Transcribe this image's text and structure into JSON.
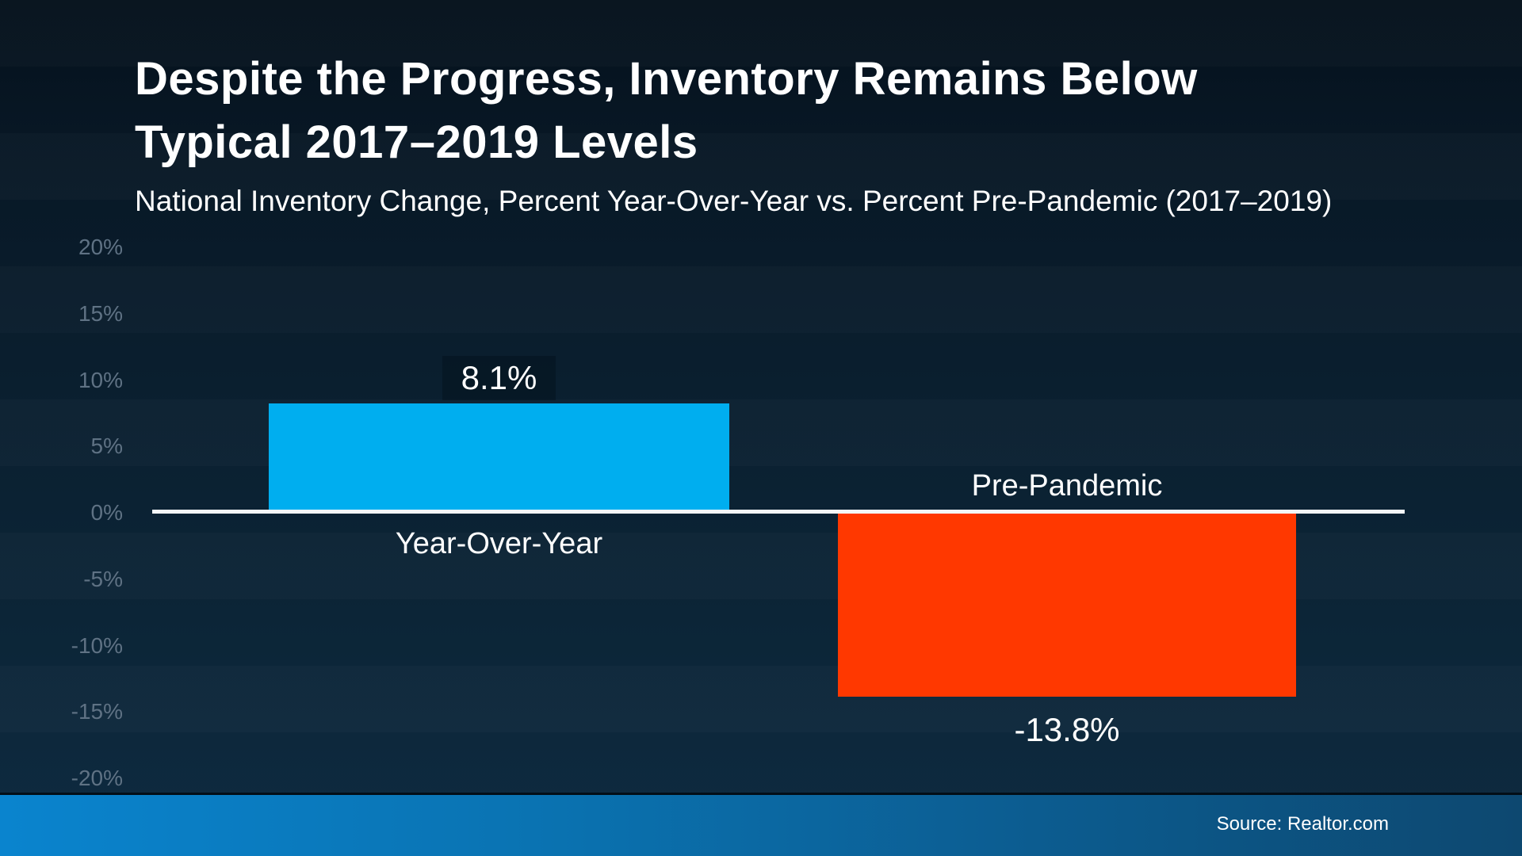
{
  "header": {
    "title": "Despite the Progress, Inventory Remains Below\nTypical 2017–2019 Levels",
    "subtitle": "National Inventory Change, Percent Year-Over-Year vs. Percent Pre-Pandemic (2017–2019)"
  },
  "footer": {
    "source": "Source: Realtor.com"
  },
  "colors": {
    "background_top": "#05111C",
    "background_bottom": "#0E2B41",
    "bar_positive": "#00AEEF",
    "bar_negative": "#FF3800",
    "axis_tick_text": "#5F7284",
    "zero_line": "#F4F7F9",
    "footer_gradient_left": "#0A84CE",
    "footer_gradient_right": "#0D4870",
    "text": "#FFFFFF"
  },
  "chart_data": {
    "type": "bar",
    "title": "Despite the Progress, Inventory Remains Below Typical 2017–2019 Levels",
    "subtitle": "National Inventory Change, Percent Year-Over-Year vs. Percent Pre-Pandemic (2017–2019)",
    "categories": [
      "Year-Over-Year",
      "Pre-Pandemic"
    ],
    "values": [
      8.1,
      -13.8
    ],
    "value_labels": [
      "8.1%",
      "-13.8%"
    ],
    "bar_colors": [
      "#00AEEF",
      "#FF3800"
    ],
    "xlabel": "",
    "ylabel": "",
    "ylim": [
      -20,
      20
    ],
    "ytick_step": 5,
    "yticks": [
      20,
      15,
      10,
      5,
      0,
      -5,
      -10,
      -15,
      -20
    ],
    "ytick_labels": [
      "20%",
      "15%",
      "10%",
      "5%",
      "0%",
      "-5%",
      "-10%",
      "-15%",
      "-20%"
    ],
    "grid": false,
    "legend_position": "none",
    "source": "Source: Realtor.com"
  }
}
